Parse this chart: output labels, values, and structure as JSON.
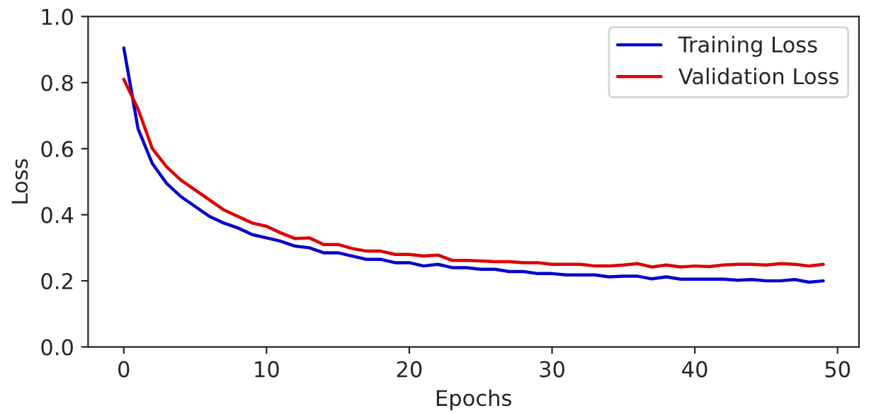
{
  "chart_data": {
    "type": "line",
    "xlabel": "Epochs",
    "ylabel": "Loss",
    "x": [
      0,
      1,
      2,
      3,
      4,
      5,
      6,
      7,
      8,
      9,
      10,
      11,
      12,
      13,
      14,
      15,
      16,
      17,
      18,
      19,
      20,
      21,
      22,
      23,
      24,
      25,
      26,
      27,
      28,
      29,
      30,
      31,
      32,
      33,
      34,
      35,
      36,
      37,
      38,
      39,
      40,
      41,
      42,
      43,
      44,
      45,
      46,
      47,
      48,
      49
    ],
    "series": [
      {
        "name": "Training Loss",
        "color": "#0000cc",
        "values": [
          0.905,
          0.66,
          0.555,
          0.495,
          0.455,
          0.425,
          0.395,
          0.375,
          0.36,
          0.34,
          0.33,
          0.32,
          0.305,
          0.3,
          0.285,
          0.285,
          0.275,
          0.265,
          0.265,
          0.255,
          0.255,
          0.245,
          0.25,
          0.24,
          0.24,
          0.235,
          0.235,
          0.228,
          0.228,
          0.222,
          0.222,
          0.218,
          0.218,
          0.218,
          0.212,
          0.214,
          0.214,
          0.206,
          0.212,
          0.205,
          0.205,
          0.205,
          0.205,
          0.202,
          0.204,
          0.2,
          0.2,
          0.204,
          0.196,
          0.2
        ]
      },
      {
        "name": "Validation Loss",
        "color": "#dd0000",
        "values": [
          0.81,
          0.72,
          0.6,
          0.545,
          0.505,
          0.475,
          0.445,
          0.415,
          0.395,
          0.375,
          0.365,
          0.345,
          0.328,
          0.33,
          0.31,
          0.31,
          0.298,
          0.29,
          0.29,
          0.28,
          0.28,
          0.275,
          0.278,
          0.262,
          0.262,
          0.26,
          0.258,
          0.258,
          0.255,
          0.255,
          0.25,
          0.25,
          0.25,
          0.245,
          0.245,
          0.248,
          0.252,
          0.242,
          0.248,
          0.242,
          0.245,
          0.243,
          0.248,
          0.25,
          0.25,
          0.248,
          0.252,
          0.25,
          0.245,
          0.25
        ]
      }
    ],
    "xlim": [
      -2.5,
      51.5
    ],
    "xticks": [
      0,
      10,
      20,
      30,
      40,
      50
    ],
    "ylim": [
      0.0,
      1.0
    ],
    "yticks": [
      {
        "value": 0.0,
        "label": "0.0"
      },
      {
        "value": 0.2,
        "label": "0.2"
      },
      {
        "value": 0.4,
        "label": "0.4"
      },
      {
        "value": 0.6,
        "label": "0.6"
      },
      {
        "value": 0.8,
        "label": "0.8"
      },
      {
        "value": 1.0,
        "label": "1.0"
      }
    ],
    "grid": false,
    "legend": "top right",
    "line_style": "solid",
    "marker": "none"
  }
}
